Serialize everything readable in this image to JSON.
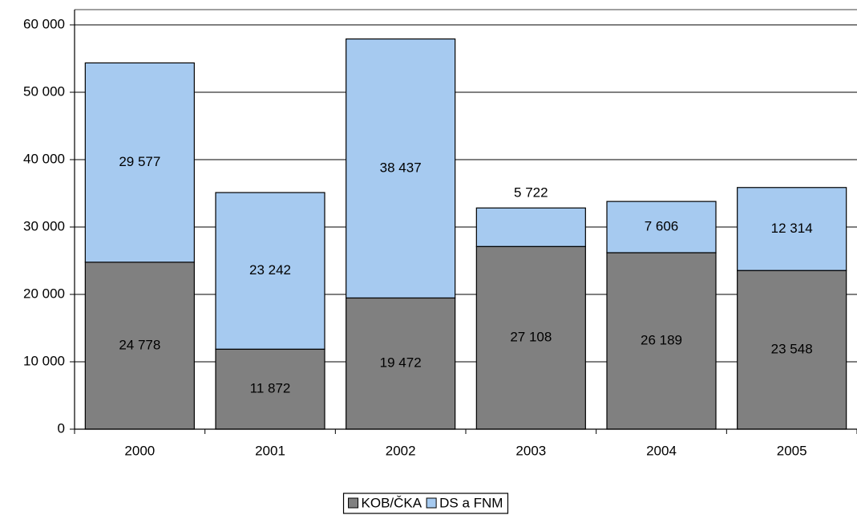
{
  "chart_data": {
    "type": "stacked_bar",
    "categories": [
      "2000",
      "2001",
      "2002",
      "2003",
      "2004",
      "2005"
    ],
    "series": [
      {
        "name": "KOB/ČKA",
        "color": "#808080",
        "values": [
          24778,
          11872,
          19472,
          27108,
          26189,
          23548
        ],
        "value_labels": [
          "24 778",
          "11 872",
          "19 472",
          "27 108",
          "26 189",
          "23 548"
        ]
      },
      {
        "name": "DS a FNM",
        "color": "#a6caf0",
        "values": [
          29577,
          23242,
          38437,
          5722,
          7606,
          12314
        ],
        "value_labels": [
          "29 577",
          "23 242",
          "38 437",
          "5 722",
          "7 606",
          "12 314"
        ]
      }
    ],
    "ylim": [
      0,
      60000
    ],
    "yticks": [
      {
        "value": 0,
        "label": "0"
      },
      {
        "value": 10000,
        "label": "10 000"
      },
      {
        "value": 20000,
        "label": "20 000"
      },
      {
        "value": 30000,
        "label": "30 000"
      },
      {
        "value": 40000,
        "label": "40 000"
      },
      {
        "value": 50000,
        "label": "50 000"
      },
      {
        "value": 60000,
        "label": "60 000"
      }
    ],
    "grid": true,
    "legend": "bottom"
  }
}
